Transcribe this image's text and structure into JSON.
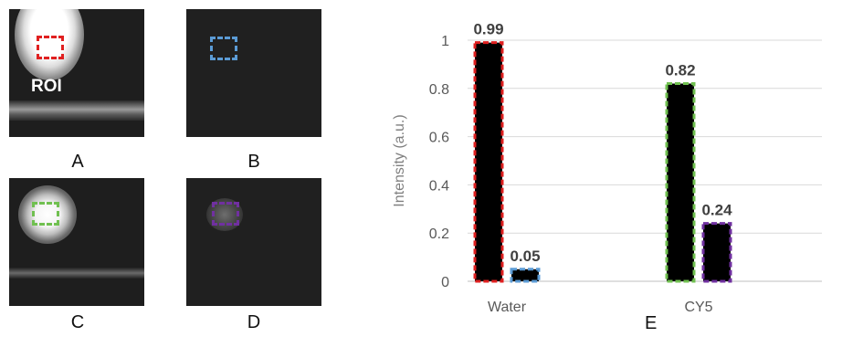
{
  "panels": {
    "a": {
      "label": "A",
      "roi_text": "ROI",
      "roi_color": "#e02020"
    },
    "b": {
      "label": "B",
      "roi_color": "#5b9bd5"
    },
    "c": {
      "label": "C",
      "roi_color": "#70c050"
    },
    "d": {
      "label": "D",
      "roi_color": "#7030a0"
    }
  },
  "figure_label": "E",
  "chart_data": {
    "type": "bar",
    "categories": [
      "Water",
      "CY5"
    ],
    "series": [
      {
        "values": [
          0.99,
          0.82
        ],
        "border_colors": [
          "#e02020",
          "#70c050"
        ]
      },
      {
        "values": [
          0.05,
          0.24
        ],
        "border_colors": [
          "#5b9bd5",
          "#7030a0"
        ]
      }
    ],
    "data_labels": [
      [
        "0.99",
        "0.82"
      ],
      [
        "0.05",
        "0.24"
      ]
    ],
    "bar_fill": "#000000",
    "title": "",
    "xlabel": "",
    "ylabel": "Intensity (a.u.)",
    "ylim": [
      0,
      1
    ],
    "yticks": [
      0,
      0.2,
      0.4,
      0.6,
      0.8,
      1
    ],
    "ytick_labels": [
      "0",
      "0.2",
      "0.4",
      "0.6",
      "0.8",
      "1"
    ],
    "grid": true
  }
}
